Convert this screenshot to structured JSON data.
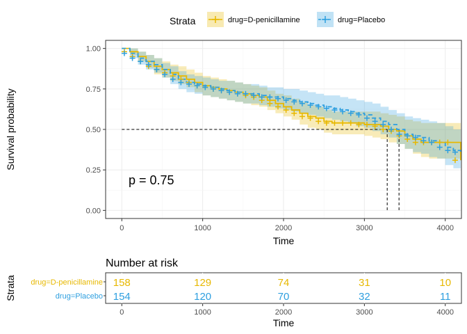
{
  "chart_data": [
    {
      "type": "line",
      "subtype": "kaplan-meier",
      "legend": {
        "title": "Strata",
        "placement": "top",
        "entries": [
          "drug=D-penicillamine",
          "drug=Placebo"
        ]
      },
      "xlabel": "Time",
      "ylabel": "Survival probability",
      "xlim": [
        -200,
        4200
      ],
      "ylim": [
        -0.05,
        1.05
      ],
      "x_ticks": [
        0,
        1000,
        2000,
        3000,
        4000
      ],
      "x_tick_labels": [
        "0",
        "1000",
        "2000",
        "3000",
        "4000"
      ],
      "y_ticks": [
        0,
        0.25,
        0.5,
        0.75,
        1.0
      ],
      "y_tick_labels": [
        "0.00",
        "0.25",
        "0.50",
        "0.75",
        "1.00"
      ],
      "grid": true,
      "annotation": "p = 0.75",
      "median_line": {
        "survival": 0.5,
        "times": [
          3282,
          3428
        ]
      },
      "series": [
        {
          "name": "drug=D-penicillamine",
          "color": "#E7B800",
          "linestyle": "solid",
          "x": [
            0,
            100,
            200,
            300,
            400,
            500,
            600,
            700,
            800,
            900,
            1000,
            1100,
            1200,
            1300,
            1400,
            1500,
            1600,
            1700,
            1800,
            1900,
            2000,
            2100,
            2200,
            2300,
            2400,
            2500,
            2600,
            2700,
            2800,
            2900,
            3000,
            3100,
            3200,
            3300,
            3400,
            3500,
            3600,
            3700,
            3800,
            3900,
            4000,
            4100,
            4191
          ],
          "y": [
            1.0,
            0.98,
            0.95,
            0.92,
            0.89,
            0.87,
            0.85,
            0.83,
            0.81,
            0.79,
            0.77,
            0.76,
            0.75,
            0.74,
            0.73,
            0.72,
            0.71,
            0.7,
            0.68,
            0.66,
            0.64,
            0.62,
            0.6,
            0.58,
            0.57,
            0.55,
            0.54,
            0.54,
            0.54,
            0.54,
            0.53,
            0.53,
            0.52,
            0.5,
            0.49,
            0.46,
            0.44,
            0.42,
            0.42,
            0.42,
            0.42,
            0.42,
            0.31
          ],
          "upper": [
            1.0,
            1.0,
            0.98,
            0.96,
            0.94,
            0.92,
            0.9,
            0.89,
            0.87,
            0.85,
            0.83,
            0.82,
            0.81,
            0.8,
            0.79,
            0.78,
            0.77,
            0.76,
            0.74,
            0.72,
            0.71,
            0.69,
            0.67,
            0.65,
            0.64,
            0.62,
            0.61,
            0.61,
            0.61,
            0.61,
            0.61,
            0.61,
            0.6,
            0.59,
            0.58,
            0.56,
            0.55,
            0.54,
            0.54,
            0.54,
            0.54,
            0.54,
            0.46
          ],
          "lower": [
            1.0,
            0.96,
            0.92,
            0.88,
            0.84,
            0.82,
            0.8,
            0.78,
            0.76,
            0.73,
            0.71,
            0.7,
            0.69,
            0.68,
            0.67,
            0.66,
            0.65,
            0.64,
            0.62,
            0.6,
            0.58,
            0.56,
            0.53,
            0.51,
            0.5,
            0.48,
            0.47,
            0.47,
            0.47,
            0.47,
            0.46,
            0.45,
            0.44,
            0.42,
            0.41,
            0.38,
            0.35,
            0.33,
            0.32,
            0.32,
            0.32,
            0.32,
            0.2
          ]
        },
        {
          "name": "drug=Placebo",
          "color": "#2E9FDF",
          "linestyle": "dashed",
          "x": [
            0,
            100,
            200,
            300,
            400,
            500,
            600,
            700,
            800,
            900,
            1000,
            1100,
            1200,
            1300,
            1400,
            1500,
            1600,
            1700,
            1800,
            1900,
            2000,
            2100,
            2200,
            2300,
            2400,
            2500,
            2600,
            2700,
            2800,
            2900,
            3000,
            3100,
            3200,
            3300,
            3400,
            3500,
            3600,
            3700,
            3800,
            3900,
            4000,
            4100,
            4191
          ],
          "y": [
            1.0,
            0.97,
            0.94,
            0.92,
            0.9,
            0.87,
            0.84,
            0.81,
            0.79,
            0.78,
            0.77,
            0.76,
            0.75,
            0.74,
            0.73,
            0.72,
            0.72,
            0.71,
            0.7,
            0.7,
            0.69,
            0.68,
            0.67,
            0.66,
            0.65,
            0.64,
            0.63,
            0.62,
            0.61,
            0.6,
            0.59,
            0.57,
            0.55,
            0.53,
            0.5,
            0.47,
            0.46,
            0.45,
            0.43,
            0.42,
            0.39,
            0.37,
            0.36
          ],
          "upper": [
            1.0,
            1.0,
            0.98,
            0.96,
            0.94,
            0.91,
            0.89,
            0.86,
            0.84,
            0.83,
            0.82,
            0.81,
            0.8,
            0.8,
            0.79,
            0.78,
            0.78,
            0.77,
            0.76,
            0.76,
            0.75,
            0.75,
            0.74,
            0.73,
            0.72,
            0.71,
            0.71,
            0.7,
            0.69,
            0.68,
            0.67,
            0.66,
            0.64,
            0.62,
            0.6,
            0.58,
            0.57,
            0.56,
            0.55,
            0.54,
            0.52,
            0.5,
            0.49
          ],
          "lower": [
            1.0,
            0.94,
            0.9,
            0.87,
            0.85,
            0.82,
            0.78,
            0.75,
            0.73,
            0.72,
            0.71,
            0.7,
            0.69,
            0.68,
            0.67,
            0.66,
            0.66,
            0.65,
            0.64,
            0.63,
            0.62,
            0.61,
            0.6,
            0.59,
            0.58,
            0.57,
            0.56,
            0.55,
            0.54,
            0.52,
            0.51,
            0.49,
            0.47,
            0.45,
            0.41,
            0.38,
            0.36,
            0.35,
            0.33,
            0.32,
            0.28,
            0.26,
            0.25
          ]
        }
      ]
    },
    {
      "type": "table",
      "title": "Number at risk",
      "ylabel": "Strata",
      "xlabel": "Time",
      "x_ticks": [
        0,
        1000,
        2000,
        3000,
        4000
      ],
      "x_tick_labels": [
        "0",
        "1000",
        "2000",
        "3000",
        "4000"
      ],
      "rows": [
        {
          "name": "drug=D-penicillamine",
          "color": "#E7B800",
          "values": [
            158,
            129,
            74,
            31,
            10
          ]
        },
        {
          "name": "drug=Placebo",
          "color": "#2E9FDF",
          "values": [
            154,
            120,
            70,
            32,
            11
          ]
        }
      ]
    }
  ]
}
